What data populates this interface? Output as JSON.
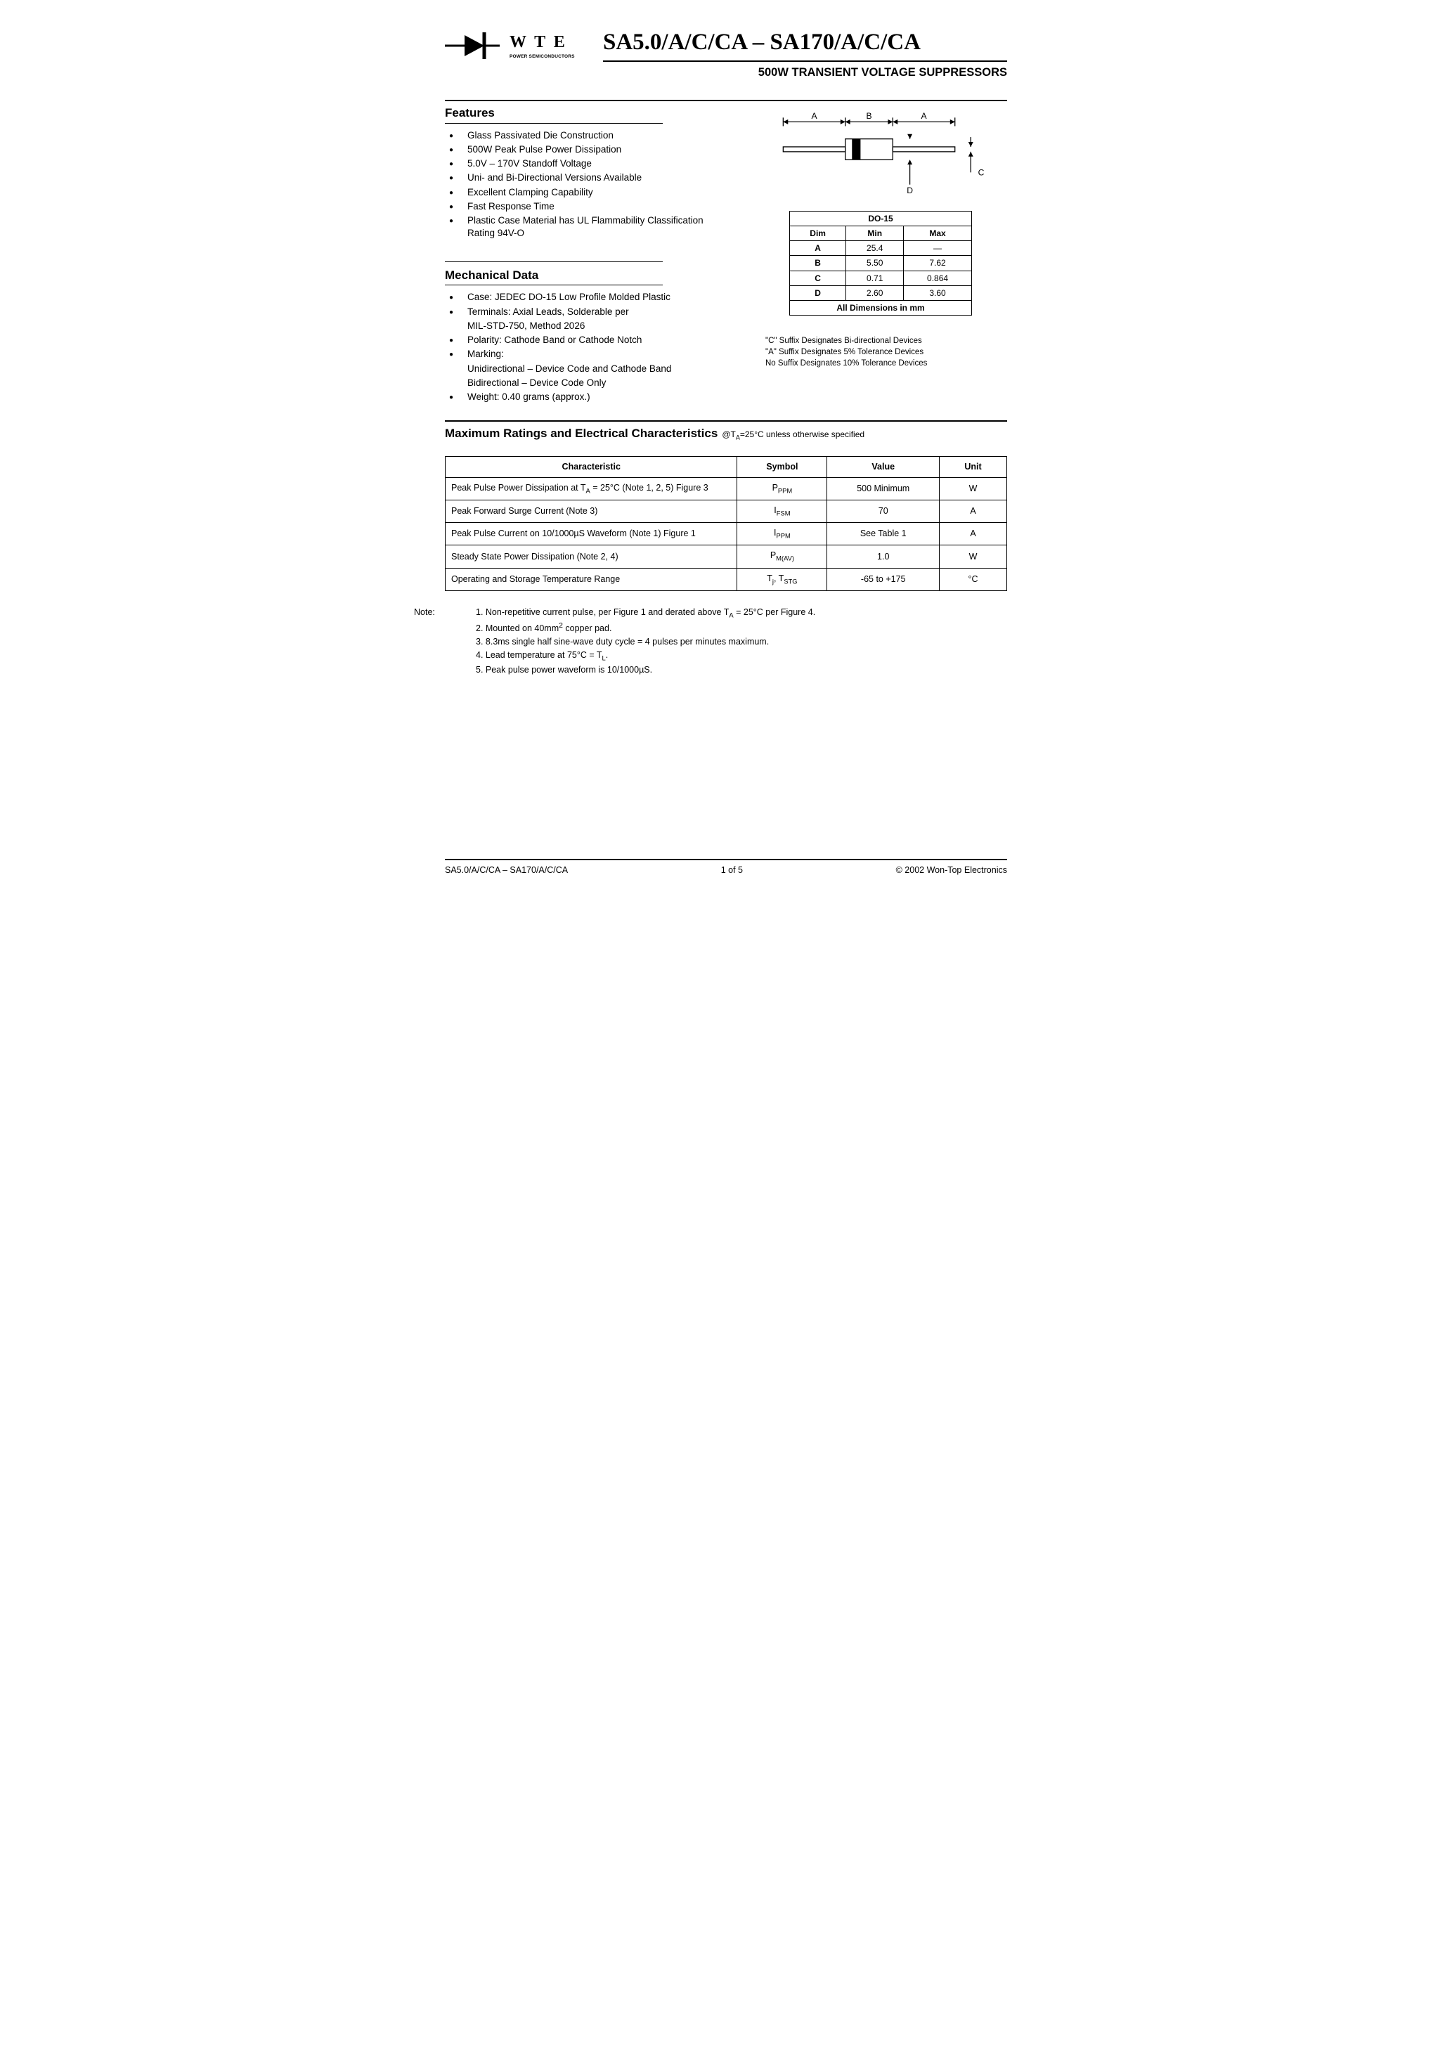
{
  "logo": {
    "brand": "W T E",
    "sub": "POWER SEMICONDUCTORS"
  },
  "header": {
    "part_title": "SA5.0/A/C/CA – SA170/A/C/CA",
    "subtitle": "500W TRANSIENT VOLTAGE SUPPRESSORS"
  },
  "features": {
    "title": "Features",
    "items": [
      "Glass Passivated Die Construction",
      "500W Peak Pulse Power Dissipation",
      "5.0V – 170V Standoff Voltage",
      "Uni- and Bi-Directional Versions Available",
      "Excellent Clamping Capability",
      "Fast Response Time",
      "Plastic Case Material has UL Flammability Classification Rating 94V-O"
    ]
  },
  "mechanical": {
    "title": "Mechanical Data",
    "items": [
      {
        "text": "Case: JEDEC DO-15 Low Profile Molded Plastic"
      },
      {
        "text": "Terminals: Axial Leads, Solderable per",
        "cont": "MIL-STD-750, Method 2026"
      },
      {
        "text": "Polarity: Cathode Band or Cathode Notch"
      },
      {
        "text": "Marking:",
        "cont": "Unidirectional – Device Code and Cathode Band",
        "cont2": "Bidirectional – Device Code Only"
      },
      {
        "text": "Weight: 0.40 grams (approx.)"
      }
    ]
  },
  "package_diagram": {
    "labels": {
      "A": "A",
      "B": "B",
      "C": "C",
      "D": "D"
    }
  },
  "dim_table": {
    "package": "DO-15",
    "headers": [
      "Dim",
      "Min",
      "Max"
    ],
    "rows": [
      [
        "A",
        "25.4",
        "—"
      ],
      [
        "B",
        "5.50",
        "7.62"
      ],
      [
        "C",
        "0.71",
        "0.864"
      ],
      [
        "D",
        "2.60",
        "3.60"
      ]
    ],
    "footer": "All Dimensions in mm"
  },
  "suffix_notes": [
    "\"C\" Suffix Designates Bi-directional Devices",
    "\"A\" Suffix Designates 5% Tolerance Devices",
    "No Suffix Designates 10% Tolerance Devices"
  ],
  "ratings": {
    "title": "Maximum Ratings and Electrical Characteristics",
    "condition_prefix": "@T",
    "condition_sub": "A",
    "condition_suffix": "=25°C unless otherwise specified",
    "headers": [
      "Characteristic",
      "Symbol",
      "Value",
      "Unit"
    ],
    "rows": [
      {
        "char": "Peak Pulse Power Dissipation at T<sub>A</sub> = 25°C (Note 1, 2, 5) Figure 3",
        "symbol": "P<sub>PPM</sub>",
        "value": "500 Minimum",
        "unit": "W"
      },
      {
        "char": "Peak Forward Surge Current (Note 3)",
        "symbol": "I<sub>FSM</sub>",
        "value": "70",
        "unit": "A"
      },
      {
        "char": "Peak Pulse Current on 10/1000µS Waveform (Note 1) Figure 1",
        "symbol": "I<sub>PPM</sub>",
        "value": "See Table 1",
        "unit": "A"
      },
      {
        "char": "Steady State Power Dissipation (Note 2, 4)",
        "symbol": "P<sub>M(AV)</sub>",
        "value": "1.0",
        "unit": "W"
      },
      {
        "char": "Operating and Storage Temperature Range",
        "symbol": "T<sub>j</sub>, T<sub>STG</sub>",
        "value": "-65 to +175",
        "unit": "°C"
      }
    ]
  },
  "notes": {
    "label": "Note:",
    "items": [
      "1. Non-repetitive current pulse, per Figure 1 and derated above T<sub>A</sub> = 25°C per Figure 4.",
      "2. Mounted on 40mm<sup>2</sup> copper pad.",
      "3. 8.3ms single half sine-wave duty cycle = 4 pulses per minutes maximum.",
      "4. Lead temperature at 75°C = T<sub>L</sub>.",
      "5. Peak pulse power waveform is 10/1000µS."
    ]
  },
  "footer": {
    "left": "SA5.0/A/C/CA – SA170/A/C/CA",
    "center": "1  of  5",
    "right": "© 2002 Won-Top Electronics"
  }
}
